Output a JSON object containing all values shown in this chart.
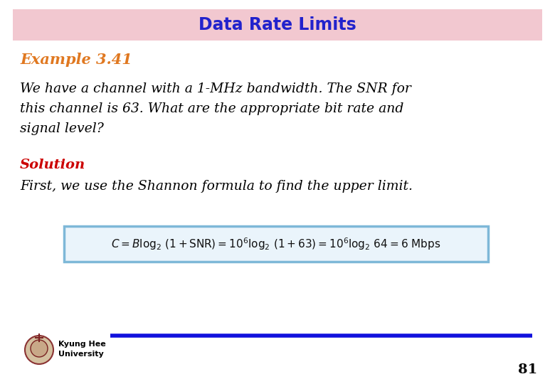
{
  "title": "Data Rate Limits",
  "title_color": "#2222CC",
  "title_bg_color": "#F2C8D0",
  "example_label": "Example 3.41",
  "example_color": "#E07820",
  "body_line1": "We have a channel with a 1-MHz bandwidth. The SNR for",
  "body_line2": "this channel is 63. What are the appropriate bit rate and",
  "body_line3": "signal level?",
  "solution_label": "Solution",
  "solution_color": "#CC0000",
  "solution_text": "First, we use the Shannon formula to find the upper limit.",
  "formula": "$C = B\\log_2\\,(1 + \\mathrm{SNR}) = 10^6\\log_2\\,(1 + 63) = 10^6\\log_2\\,64 = 6\\ \\mathrm{Mbps}$",
  "formula_box_edge": "#7EB8D8",
  "formula_box_face": "#EAF4FB",
  "footer_line_color": "#1111DD",
  "footer_text": "Kyung Hee\nUniversity",
  "page_number": "81",
  "bg_color": "#FFFFFF"
}
